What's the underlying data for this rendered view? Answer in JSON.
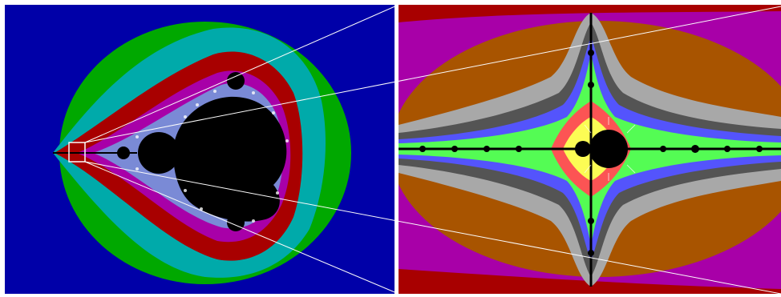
{
  "figure": {
    "description_kind": "mandelbrot-zoom-illustration",
    "panels": [
      "overview",
      "zoomed-detail"
    ],
    "palette": {
      "background_blue": "#0000a8",
      "green": "#00a800",
      "cyan": "#00aaaa",
      "red": "#a80000",
      "magenta": "#a800a8",
      "orange": "#a85400",
      "light_gray": "#a8a8a8",
      "dark_gray": "#545454",
      "light_blue": "#5454fc",
      "light_green": "#54fc54",
      "light_cyan": "#54fcfc",
      "light_red": "#fc5454",
      "yellow": "#fcfc54",
      "white": "#fcfcfc",
      "black": "#000000"
    }
  }
}
